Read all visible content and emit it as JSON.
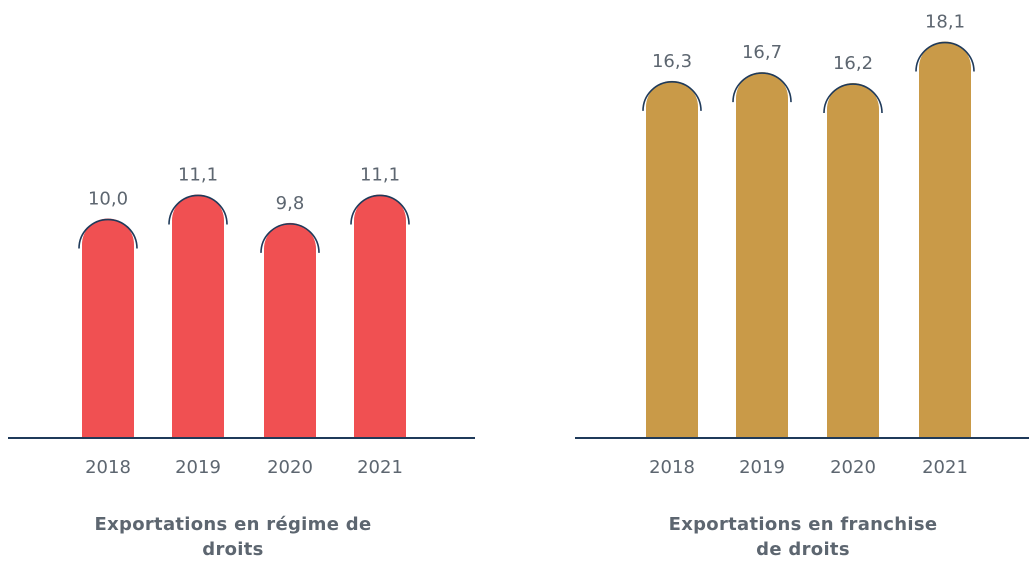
{
  "chart_data": [
    {
      "type": "bar",
      "title": "Exportations en régime de droits",
      "categories": [
        "2018",
        "2019",
        "2020",
        "2021"
      ],
      "values": [
        10.0,
        11.1,
        9.8,
        11.1
      ],
      "value_labels": [
        "10,0",
        "11,1",
        "9,8",
        "11,1"
      ],
      "color": "#f05052",
      "ylim": [
        0,
        20
      ]
    },
    {
      "type": "bar",
      "title": "Exportations en franchise de droits",
      "categories": [
        "2018",
        "2019",
        "2020",
        "2021"
      ],
      "values": [
        16.3,
        16.7,
        16.2,
        18.1
      ],
      "value_labels": [
        "16,3",
        "16,7",
        "16,2",
        "18,1"
      ],
      "color": "#c99a48",
      "ylim": [
        0,
        20
      ]
    }
  ]
}
